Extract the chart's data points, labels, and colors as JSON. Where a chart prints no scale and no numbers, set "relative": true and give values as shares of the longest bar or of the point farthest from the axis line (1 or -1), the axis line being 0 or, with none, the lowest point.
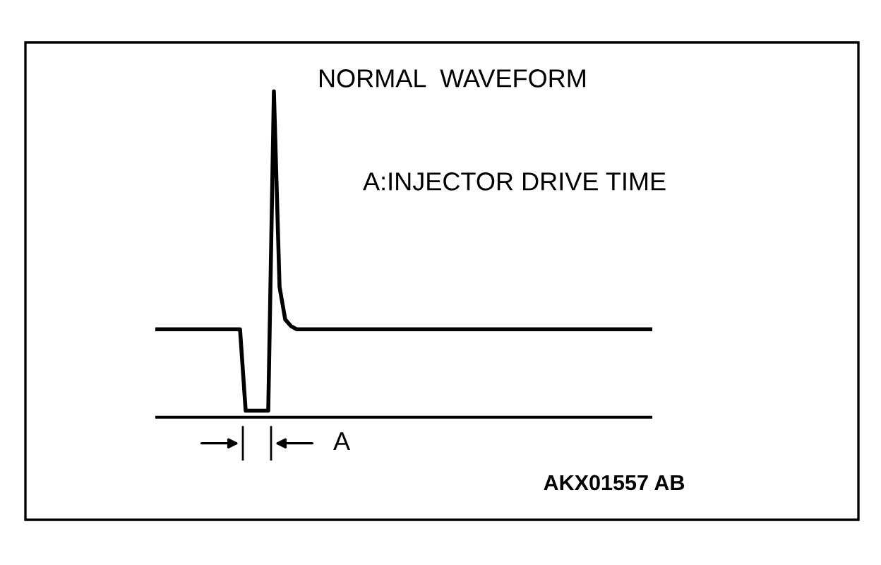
{
  "chart_data": {
    "type": "line",
    "relative": true,
    "title": "NORMAL  WAVEFORM",
    "subtitle": "A:INJECTOR DRIVE TIME",
    "annotations": [
      "A",
      "AKX01557 AB"
    ],
    "categories": [
      null,
      null,
      null,
      null,
      null,
      null,
      null,
      null,
      null,
      null,
      null,
      null,
      null,
      null,
      null,
      null,
      null,
      null,
      null,
      null,
      null,
      null,
      null,
      null,
      null,
      null,
      null,
      null,
      null,
      null,
      null,
      null,
      null,
      null,
      null,
      null,
      null,
      null,
      null,
      null,
      null,
      null,
      null,
      null,
      null,
      null,
      null,
      null,
      null,
      null,
      null,
      null,
      null,
      null,
      null,
      null,
      null,
      null,
      null,
      null,
      null,
      null,
      null,
      null,
      null,
      null,
      null,
      null,
      null,
      null,
      null,
      null,
      null,
      null,
      null,
      null,
      null,
      null,
      null,
      null,
      null,
      null,
      null,
      null,
      null,
      null,
      null,
      null,
      null
    ],
    "series": [
      {
        "color": "#000000",
        "values": [
          0.27,
          0.27,
          0.27,
          0.27,
          0.27,
          0.27,
          0.27,
          0.27,
          0.27,
          0.27,
          0.27,
          0.27,
          0.27,
          0.27,
          0.27,
          0.27,
          0.02,
          0.02,
          0.02,
          0.02,
          0.02,
          1.0,
          0.4,
          0.3,
          0.28,
          0.27,
          0.27,
          0.27,
          0.27,
          0.27,
          0.27,
          0.27,
          0.27,
          0.27,
          0.27,
          0.27,
          0.27,
          0.27,
          0.27,
          0.27,
          0.27,
          0.27,
          0.27,
          0.27,
          0.27,
          0.27,
          0.27,
          0.27,
          0.27,
          0.27,
          0.27,
          0.27,
          0.27,
          0.27,
          0.27,
          0.27,
          0.27,
          0.27,
          0.27,
          0.27,
          0.27,
          0.27,
          0.27,
          0.27,
          0.27,
          0.27,
          0.27,
          0.27,
          0.27,
          0.27,
          0.27,
          0.27,
          0.27,
          0.27,
          0.27,
          0.27,
          0.27,
          0.27,
          0.27,
          0.27,
          0.27,
          0.27,
          0.27,
          0.27,
          0.27,
          0.27,
          0.27,
          0.27,
          0.27
        ]
      }
    ],
    "line_style": "solid",
    "marker": "none",
    "legend": false
  }
}
